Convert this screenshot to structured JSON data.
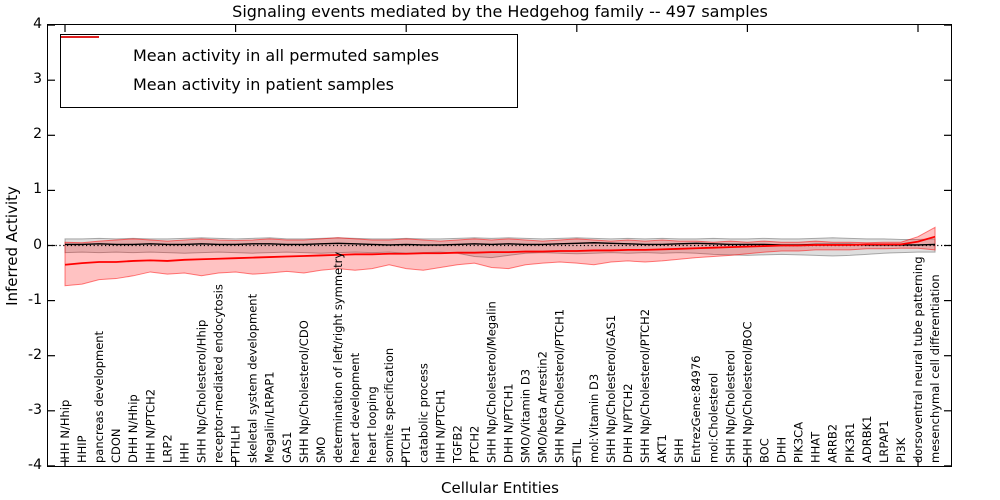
{
  "chart_data": {
    "type": "line",
    "title": "Signaling events mediated by the Hedgehog family -- 497 samples",
    "xlabel": "Cellular Entities",
    "ylabel": "Inferred Activity",
    "ylim": [
      -4,
      4
    ],
    "yticks": [
      4,
      3,
      2,
      1,
      0,
      -1,
      -2,
      -3,
      -4
    ],
    "x_major_tick_indices": [
      0,
      10,
      20,
      30,
      40,
      50
    ],
    "grid": false,
    "zero_line": "dotted",
    "legend_position": "upper left",
    "categories": [
      "IHH N/Hhip",
      "HHIP",
      "pancreas development",
      "CDON",
      "DHH N/Hhip",
      "IHH N/PTCH2",
      "LRP2",
      "IHH",
      "SHH Np/Cholesterol/Hhip",
      "receptor-mediated endocytosis",
      "PTHLH",
      "skeletal system development",
      "Megalin/LRPAP1",
      "GAS1",
      "SHH Np/Cholesterol/CDO",
      "SMO",
      "determination of left/right symmetry",
      "heart development",
      "heart looping",
      "somite specification",
      "PTCH1",
      "catabolic process",
      "IHH N/PTCH1",
      "TGFB2",
      "PTCH2",
      "SHH Np/Cholesterol/Megalin",
      "DHH N/PTCH1",
      "SMO/Vitamin D3",
      "SMO/beta Arrestin2",
      "SHH Np/Cholesterol/PTCH1",
      "STIL",
      "mol:Vitamin D3",
      "SHH Np/Cholesterol/GAS1",
      "DHH N/PTCH2",
      "SHH Np/Cholesterol/PTCH2",
      "AKT1",
      "SHH",
      "EntrezGene:84976",
      "mol:Cholesterol",
      "SHH Np/Cholesterol",
      "SHH Np/Cholesterol/BOC",
      "BOC",
      "DHH",
      "PIK3CA",
      "HHAT",
      "ARRB2",
      "PIK3R1",
      "ADRBK1",
      "LRPAP1",
      "PI3K",
      "dorsoventral neural tube patterning",
      "mesenchymal cell differentiation"
    ],
    "series": [
      {
        "name": "Mean activity in all permuted samples",
        "color": "#000000",
        "values": [
          0.02,
          0.02,
          0.03,
          0.02,
          0.02,
          0.03,
          0.02,
          0.02,
          0.03,
          0.02,
          0.02,
          0.03,
          0.03,
          0.02,
          0.02,
          0.03,
          0.04,
          0.03,
          0.02,
          0.01,
          0.02,
          0.01,
          0.01,
          0.02,
          0.03,
          0.02,
          0.03,
          0.02,
          0.02,
          0.03,
          0.04,
          0.05,
          0.04,
          0.03,
          0.02,
          0.02,
          0.03,
          0.04,
          0.03,
          0.02,
          0.02,
          0.02,
          0.01,
          0.01,
          0.02,
          0.02,
          0.02,
          0.01,
          0.01,
          0.01,
          0.01,
          0.02
        ],
        "band_lo": [
          -0.13,
          -0.12,
          -0.13,
          -0.12,
          -0.13,
          -0.12,
          -0.13,
          -0.14,
          -0.13,
          -0.12,
          -0.13,
          -0.14,
          -0.13,
          -0.12,
          -0.13,
          -0.14,
          -0.13,
          -0.12,
          -0.13,
          -0.12,
          -0.14,
          -0.13,
          -0.12,
          -0.14,
          -0.2,
          -0.22,
          -0.18,
          -0.14,
          -0.13,
          -0.14,
          -0.15,
          -0.14,
          -0.13,
          -0.14,
          -0.13,
          -0.14,
          -0.13,
          -0.14,
          -0.16,
          -0.17,
          -0.18,
          -0.17,
          -0.16,
          -0.17,
          -0.18,
          -0.19,
          -0.18,
          -0.16,
          -0.14,
          -0.13,
          -0.12,
          -0.12
        ],
        "band_hi": [
          0.12,
          0.12,
          0.13,
          0.12,
          0.13,
          0.12,
          0.12,
          0.13,
          0.14,
          0.13,
          0.12,
          0.13,
          0.14,
          0.12,
          0.12,
          0.13,
          0.14,
          0.13,
          0.12,
          0.12,
          0.13,
          0.12,
          0.12,
          0.13,
          0.14,
          0.13,
          0.14,
          0.13,
          0.12,
          0.13,
          0.14,
          0.13,
          0.12,
          0.13,
          0.12,
          0.13,
          0.12,
          0.12,
          0.13,
          0.12,
          0.12,
          0.13,
          0.12,
          0.12,
          0.13,
          0.14,
          0.13,
          0.12,
          0.12,
          0.11,
          0.11,
          0.12
        ],
        "band_fill": "rgba(0,0,0,0.13)",
        "band_edge": "rgba(0,0,0,0.30)"
      },
      {
        "name": "Mean activity in patient samples",
        "color": "#ff0000",
        "values": [
          -0.35,
          -0.32,
          -0.3,
          -0.3,
          -0.28,
          -0.27,
          -0.28,
          -0.26,
          -0.25,
          -0.24,
          -0.23,
          -0.22,
          -0.21,
          -0.2,
          -0.19,
          -0.18,
          -0.17,
          -0.16,
          -0.16,
          -0.15,
          -0.15,
          -0.14,
          -0.14,
          -0.13,
          -0.13,
          -0.12,
          -0.12,
          -0.11,
          -0.11,
          -0.1,
          -0.1,
          -0.09,
          -0.09,
          -0.08,
          -0.08,
          -0.07,
          -0.06,
          -0.05,
          -0.04,
          -0.03,
          -0.02,
          -0.01,
          0.0,
          0.0,
          0.01,
          0.01,
          0.01,
          0.02,
          0.02,
          0.02,
          0.07,
          0.16
        ],
        "band_lo": [
          -0.73,
          -0.7,
          -0.62,
          -0.6,
          -0.55,
          -0.48,
          -0.52,
          -0.5,
          -0.55,
          -0.5,
          -0.48,
          -0.52,
          -0.5,
          -0.47,
          -0.5,
          -0.45,
          -0.42,
          -0.45,
          -0.42,
          -0.35,
          -0.42,
          -0.45,
          -0.4,
          -0.35,
          -0.32,
          -0.4,
          -0.42,
          -0.35,
          -0.32,
          -0.3,
          -0.32,
          -0.35,
          -0.3,
          -0.28,
          -0.3,
          -0.28,
          -0.25,
          -0.22,
          -0.2,
          -0.18,
          -0.15,
          -0.12,
          -0.1,
          -0.1,
          -0.08,
          -0.08,
          -0.08,
          -0.06,
          -0.06,
          -0.05,
          -0.05,
          -0.08
        ],
        "band_hi": [
          0.06,
          0.05,
          0.08,
          0.1,
          0.12,
          0.1,
          0.08,
          0.1,
          0.12,
          0.1,
          0.09,
          0.1,
          0.12,
          0.1,
          0.1,
          0.12,
          0.14,
          0.12,
          0.1,
          0.1,
          0.12,
          0.1,
          0.08,
          0.1,
          0.12,
          0.1,
          0.12,
          0.1,
          0.08,
          0.1,
          0.12,
          0.1,
          0.08,
          0.1,
          0.08,
          0.1,
          0.08,
          0.08,
          0.06,
          0.08,
          0.06,
          0.08,
          0.06,
          0.06,
          0.08,
          0.06,
          0.06,
          0.05,
          0.06,
          0.06,
          0.16,
          0.33
        ],
        "band_fill": "rgba(255,0,0,0.24)",
        "band_edge": "rgba(255,0,0,0.50)"
      }
    ]
  }
}
